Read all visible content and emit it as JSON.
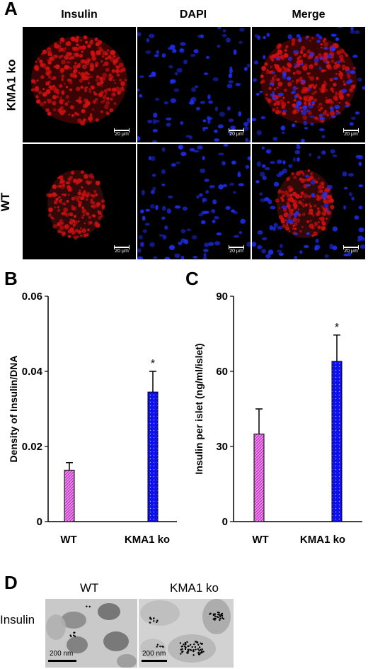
{
  "panel_a": {
    "letter": "A",
    "columns": [
      "Insulin",
      "DAPI",
      "Merge"
    ],
    "rows": [
      "KMA1 ko",
      "WT"
    ],
    "scale_label": "20 μm"
  },
  "panel_b": {
    "letter": "B"
  },
  "panel_c": {
    "letter": "C"
  },
  "panel_d": {
    "letter": "D",
    "columns": [
      "WT",
      "KMA1 ko"
    ],
    "row_label": "Insulin",
    "scale_label": "200 nm"
  },
  "colors": {
    "wt_bar": "#ee82ee",
    "ko_bar": "#1010ee",
    "insulin_stain": "#d01010",
    "dapi_stain": "#2030ff"
  },
  "chart_data": [
    {
      "type": "bar",
      "panel": "B",
      "ylabel": "Density of Insulin/DNA",
      "categories": [
        "WT",
        "KMA1 ko"
      ],
      "values": [
        0.0137,
        0.0345
      ],
      "errors": [
        0.002,
        0.0055
      ],
      "significance": [
        "",
        "*"
      ],
      "ylim": [
        0,
        0.06
      ],
      "yticks": [
        "0",
        "0.02",
        "0.04",
        "0.06"
      ]
    },
    {
      "type": "bar",
      "panel": "C",
      "ylabel": "Insulin per islet (ng/ml/islet)",
      "categories": [
        "WT",
        "KMA1 ko"
      ],
      "values": [
        35,
        64
      ],
      "errors": [
        10,
        10.5
      ],
      "significance": [
        "",
        "*"
      ],
      "ylim": [
        0,
        90
      ],
      "yticks": [
        "0",
        "30",
        "60",
        "90"
      ]
    }
  ]
}
